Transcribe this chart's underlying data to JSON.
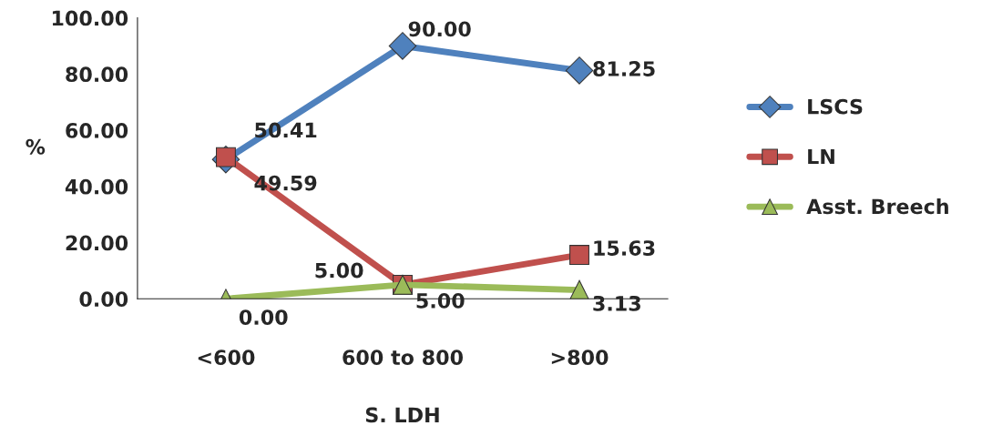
{
  "chart_data": {
    "type": "line",
    "xlabel": "S. LDH",
    "ylabel": "%",
    "categories": [
      "<600",
      "600 to 800",
      ">800"
    ],
    "series": [
      {
        "name": "LSCS",
        "color": "#4f81bd",
        "marker": "diamond",
        "values": [
          49.59,
          90.0,
          81.25
        ],
        "value_labels": [
          "49.59",
          "90.00",
          "81.25"
        ]
      },
      {
        "name": "LN",
        "color": "#c0504d",
        "marker": "square",
        "values": [
          50.41,
          5.0,
          15.63
        ],
        "value_labels": [
          "50.41",
          "5.00",
          "15.63"
        ]
      },
      {
        "name": "Asst. Breech",
        "color": "#9bbb59",
        "marker": "triangle",
        "values": [
          0.0,
          5.0,
          3.13
        ],
        "value_labels": [
          "0.00",
          "5.00",
          "3.13"
        ]
      }
    ],
    "ylim": [
      0,
      100
    ],
    "yticks": [
      {
        "value": 0,
        "label": "0.00"
      },
      {
        "value": 20,
        "label": "20.00"
      },
      {
        "value": 40,
        "label": "40.00"
      },
      {
        "value": 60,
        "label": "60.00"
      },
      {
        "value": 80,
        "label": "80.00"
      },
      {
        "value": 100,
        "label": "100.00"
      }
    ],
    "grid": false,
    "legend": "right"
  }
}
